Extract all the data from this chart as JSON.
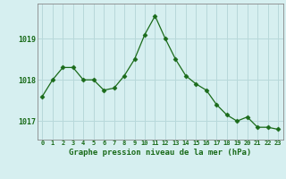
{
  "x": [
    0,
    1,
    2,
    3,
    4,
    5,
    6,
    7,
    8,
    9,
    10,
    11,
    12,
    13,
    14,
    15,
    16,
    17,
    18,
    19,
    20,
    21,
    22,
    23
  ],
  "y": [
    1017.6,
    1018.0,
    1018.3,
    1018.3,
    1018.0,
    1018.0,
    1017.75,
    1017.8,
    1018.1,
    1018.5,
    1019.1,
    1019.55,
    1019.0,
    1018.5,
    1018.1,
    1017.9,
    1017.75,
    1017.4,
    1017.15,
    1017.0,
    1017.1,
    1016.85,
    1016.85,
    1016.8
  ],
  "line_color": "#1a6b1a",
  "marker": "D",
  "marker_size": 2.5,
  "bg_color": "#d6eff0",
  "grid_color": "#b8d8da",
  "xlabel": "Graphe pression niveau de la mer (hPa)",
  "xlabel_color": "#1a6b1a",
  "tick_color": "#1a6b1a",
  "yticks": [
    1017,
    1018,
    1019
  ],
  "ylim": [
    1016.55,
    1019.85
  ],
  "xlim": [
    -0.5,
    23.5
  ],
  "spine_color": "#888888"
}
